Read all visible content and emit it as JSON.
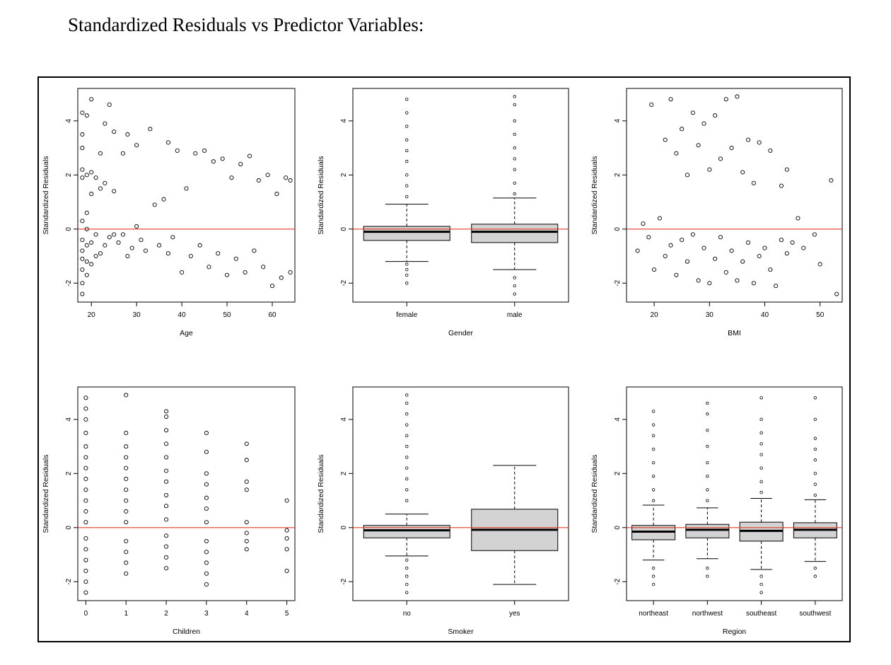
{
  "page": {
    "title": "Standardized Residuals vs Predictor Variables:"
  },
  "colors": {
    "reference_line": "#e0392b",
    "box_fill": "#d3d3d3",
    "ink": "#000000"
  },
  "chart_data": [
    {
      "id": "age",
      "type": "scatter",
      "xlabel": "Age",
      "ylabel": "Standardized Residuals",
      "xlim": [
        17,
        65
      ],
      "ylim": [
        -2.7,
        5.2
      ],
      "xticks": [
        20,
        30,
        40,
        50,
        60
      ],
      "yticks": [
        -2,
        0,
        2,
        4
      ],
      "reference_line_y": 0,
      "points": [
        [
          18,
          -2.4
        ],
        [
          18,
          -2.0
        ],
        [
          18,
          -1.5
        ],
        [
          18,
          -1.1
        ],
        [
          18,
          -0.8
        ],
        [
          18,
          -0.4
        ],
        [
          18,
          0.3
        ],
        [
          18,
          1.9
        ],
        [
          18,
          2.2
        ],
        [
          18,
          3.0
        ],
        [
          18,
          3.5
        ],
        [
          18,
          4.3
        ],
        [
          19,
          -1.7
        ],
        [
          19,
          -1.2
        ],
        [
          19,
          -0.6
        ],
        [
          19,
          0.0
        ],
        [
          19,
          0.6
        ],
        [
          19,
          2.0
        ],
        [
          19,
          4.2
        ],
        [
          20,
          -1.3
        ],
        [
          20,
          -0.5
        ],
        [
          20,
          1.3
        ],
        [
          20,
          2.1
        ],
        [
          20,
          4.8
        ],
        [
          21,
          -1.0
        ],
        [
          21,
          -0.2
        ],
        [
          21,
          1.9
        ],
        [
          22,
          -0.9
        ],
        [
          22,
          1.5
        ],
        [
          22,
          2.8
        ],
        [
          23,
          -0.6
        ],
        [
          23,
          1.7
        ],
        [
          23,
          3.9
        ],
        [
          24,
          -0.3
        ],
        [
          24,
          4.6
        ],
        [
          25,
          -0.2
        ],
        [
          25,
          1.4
        ],
        [
          25,
          3.6
        ],
        [
          26,
          -0.5
        ],
        [
          27,
          -0.2
        ],
        [
          27,
          2.8
        ],
        [
          28,
          -1.0
        ],
        [
          28,
          3.5
        ],
        [
          29,
          -0.7
        ],
        [
          30,
          0.1
        ],
        [
          30,
          3.1
        ],
        [
          31,
          -0.4
        ],
        [
          32,
          -0.8
        ],
        [
          33,
          3.7
        ],
        [
          34,
          0.9
        ],
        [
          35,
          -0.6
        ],
        [
          36,
          1.1
        ],
        [
          37,
          -0.9
        ],
        [
          37,
          3.2
        ],
        [
          38,
          -0.3
        ],
        [
          39,
          2.9
        ],
        [
          40,
          -1.6
        ],
        [
          41,
          1.5
        ],
        [
          42,
          -1.0
        ],
        [
          43,
          2.8
        ],
        [
          44,
          -0.6
        ],
        [
          45,
          2.9
        ],
        [
          46,
          -1.4
        ],
        [
          47,
          2.5
        ],
        [
          48,
          -0.9
        ],
        [
          49,
          2.6
        ],
        [
          50,
          -1.7
        ],
        [
          51,
          1.9
        ],
        [
          52,
          -1.1
        ],
        [
          53,
          2.4
        ],
        [
          54,
          -1.6
        ],
        [
          55,
          2.7
        ],
        [
          56,
          -0.8
        ],
        [
          57,
          1.8
        ],
        [
          58,
          -1.4
        ],
        [
          59,
          2.0
        ],
        [
          60,
          -2.1
        ],
        [
          61,
          1.3
        ],
        [
          62,
          -1.8
        ],
        [
          63,
          1.9
        ],
        [
          64,
          -1.6
        ],
        [
          64,
          1.8
        ]
      ]
    },
    {
      "id": "gender",
      "type": "box",
      "xlabel": "Gender",
      "ylabel": "Standardized Residuals",
      "ylim": [
        -2.7,
        5.2
      ],
      "yticks": [
        -2,
        0,
        2,
        4
      ],
      "reference_line_y": 0,
      "categories": [
        "female",
        "male"
      ],
      "boxes": [
        {
          "whisker_low": -1.2,
          "q1": -0.42,
          "median": -0.1,
          "q3": 0.1,
          "whisker_high": 0.92,
          "outliers": [
            -2.0,
            -1.7,
            -1.5,
            -1.3,
            1.2,
            1.6,
            2.0,
            2.5,
            2.9,
            3.3,
            3.8,
            4.3,
            4.8
          ]
        },
        {
          "whisker_low": -1.5,
          "q1": -0.5,
          "median": -0.1,
          "q3": 0.18,
          "whisker_high": 1.15,
          "outliers": [
            -2.4,
            -2.1,
            -1.8,
            1.3,
            1.7,
            2.2,
            2.6,
            3.0,
            3.5,
            4.0,
            4.6,
            4.9
          ]
        }
      ]
    },
    {
      "id": "bmi",
      "type": "scatter",
      "xlabel": "BMI",
      "ylabel": "Standardized Residuals",
      "xlim": [
        15,
        54
      ],
      "ylim": [
        -2.7,
        5.2
      ],
      "xticks": [
        20,
        30,
        40,
        50
      ],
      "yticks": [
        -2,
        0,
        2,
        4
      ],
      "reference_line_y": 0,
      "points": [
        [
          17,
          -0.8
        ],
        [
          18,
          0.2
        ],
        [
          19,
          -0.3
        ],
        [
          19.5,
          4.6
        ],
        [
          20,
          -1.5
        ],
        [
          21,
          0.4
        ],
        [
          22,
          -1.0
        ],
        [
          22,
          3.3
        ],
        [
          23,
          -0.6
        ],
        [
          23,
          4.8
        ],
        [
          24,
          -1.7
        ],
        [
          24,
          2.8
        ],
        [
          25,
          -0.4
        ],
        [
          25,
          3.7
        ],
        [
          26,
          -1.2
        ],
        [
          26,
          2.0
        ],
        [
          27,
          -0.2
        ],
        [
          27,
          4.3
        ],
        [
          28,
          -1.9
        ],
        [
          28,
          3.1
        ],
        [
          29,
          -0.7
        ],
        [
          29,
          3.9
        ],
        [
          30,
          -2.0
        ],
        [
          30,
          2.2
        ],
        [
          31,
          -1.1
        ],
        [
          31,
          4.2
        ],
        [
          32,
          -0.3
        ],
        [
          32,
          2.6
        ],
        [
          33,
          -1.6
        ],
        [
          33,
          4.8
        ],
        [
          34,
          -0.8
        ],
        [
          34,
          3.0
        ],
        [
          35,
          -1.9
        ],
        [
          35,
          4.9
        ],
        [
          36,
          -1.2
        ],
        [
          36,
          2.1
        ],
        [
          37,
          -0.5
        ],
        [
          37,
          3.3
        ],
        [
          38,
          -2.0
        ],
        [
          38,
          1.7
        ],
        [
          39,
          -1.0
        ],
        [
          39,
          3.2
        ],
        [
          40,
          -0.7
        ],
        [
          41,
          -1.5
        ],
        [
          41,
          2.9
        ],
        [
          42,
          -2.1
        ],
        [
          43,
          -0.4
        ],
        [
          43,
          1.6
        ],
        [
          44,
          -0.9
        ],
        [
          44,
          2.2
        ],
        [
          45,
          -0.5
        ],
        [
          46,
          0.4
        ],
        [
          47,
          -0.7
        ],
        [
          49,
          -0.2
        ],
        [
          50,
          -1.3
        ],
        [
          52,
          1.8
        ],
        [
          53,
          -2.4
        ]
      ]
    },
    {
      "id": "children",
      "type": "scatter",
      "xlabel": "Children",
      "ylabel": "Standardized Residuals",
      "xlim": [
        -0.2,
        5.2
      ],
      "ylim": [
        -2.7,
        5.2
      ],
      "xticks": [
        0,
        1,
        2,
        3,
        4,
        5
      ],
      "yticks": [
        -2,
        0,
        2,
        4
      ],
      "reference_line_y": 0,
      "points": [
        [
          0,
          -2.4
        ],
        [
          0,
          -2.0
        ],
        [
          0,
          -1.6
        ],
        [
          0,
          -1.2
        ],
        [
          0,
          -0.8
        ],
        [
          0,
          -0.4
        ],
        [
          0,
          0.2
        ],
        [
          0,
          0.6
        ],
        [
          0,
          1.0
        ],
        [
          0,
          1.4
        ],
        [
          0,
          1.8
        ],
        [
          0,
          2.2
        ],
        [
          0,
          2.6
        ],
        [
          0,
          3.0
        ],
        [
          0,
          3.5
        ],
        [
          0,
          4.0
        ],
        [
          0,
          4.4
        ],
        [
          0,
          4.8
        ],
        [
          1,
          -1.7
        ],
        [
          1,
          -1.3
        ],
        [
          1,
          -0.9
        ],
        [
          1,
          -0.5
        ],
        [
          1,
          0.2
        ],
        [
          1,
          0.6
        ],
        [
          1,
          1.0
        ],
        [
          1,
          1.4
        ],
        [
          1,
          1.8
        ],
        [
          1,
          2.2
        ],
        [
          1,
          2.6
        ],
        [
          1,
          3.0
        ],
        [
          1,
          3.5
        ],
        [
          1,
          4.9
        ],
        [
          2,
          -1.5
        ],
        [
          2,
          -1.1
        ],
        [
          2,
          -0.7
        ],
        [
          2,
          -0.3
        ],
        [
          2,
          0.3
        ],
        [
          2,
          0.8
        ],
        [
          2,
          1.2
        ],
        [
          2,
          1.7
        ],
        [
          2,
          2.1
        ],
        [
          2,
          2.6
        ],
        [
          2,
          3.1
        ],
        [
          2,
          3.6
        ],
        [
          2,
          4.1
        ],
        [
          2,
          4.3
        ],
        [
          3,
          -2.1
        ],
        [
          3,
          -1.7
        ],
        [
          3,
          -1.3
        ],
        [
          3,
          -0.9
        ],
        [
          3,
          -0.5
        ],
        [
          3,
          0.2
        ],
        [
          3,
          0.7
        ],
        [
          3,
          1.1
        ],
        [
          3,
          1.6
        ],
        [
          3,
          2.0
        ],
        [
          3,
          2.8
        ],
        [
          3,
          3.5
        ],
        [
          4,
          -0.8
        ],
        [
          4,
          -0.5
        ],
        [
          4,
          -0.2
        ],
        [
          4,
          0.2
        ],
        [
          4,
          1.4
        ],
        [
          4,
          1.7
        ],
        [
          4,
          2.5
        ],
        [
          4,
          3.1
        ],
        [
          5,
          -1.6
        ],
        [
          5,
          -0.8
        ],
        [
          5,
          -0.4
        ],
        [
          5,
          -0.1
        ],
        [
          5,
          1.0
        ]
      ]
    },
    {
      "id": "smoker",
      "type": "box",
      "xlabel": "Smoker",
      "ylabel": "Standardized Residuals",
      "ylim": [
        -2.7,
        5.2
      ],
      "yticks": [
        -2,
        0,
        2,
        4
      ],
      "reference_line_y": 0,
      "categories": [
        "no",
        "yes"
      ],
      "boxes": [
        {
          "whisker_low": -1.05,
          "q1": -0.38,
          "median": -0.1,
          "q3": 0.08,
          "whisker_high": 0.5,
          "outliers": [
            -2.4,
            -2.1,
            -1.8,
            -1.5,
            -1.2,
            1.0,
            1.4,
            1.8,
            2.2,
            2.6,
            3.0,
            3.4,
            3.8,
            4.2,
            4.6,
            4.9
          ]
        },
        {
          "whisker_low": -2.1,
          "q1": -0.85,
          "median": -0.08,
          "q3": 0.68,
          "whisker_high": 2.3,
          "outliers": []
        }
      ]
    },
    {
      "id": "region",
      "type": "box",
      "xlabel": "Region",
      "ylabel": "Standardized Residuals",
      "ylim": [
        -2.7,
        5.2
      ],
      "yticks": [
        -2,
        0,
        2,
        4
      ],
      "reference_line_y": 0,
      "categories": [
        "northeast",
        "northwest",
        "southeast",
        "southwest"
      ],
      "boxes": [
        {
          "whisker_low": -1.2,
          "q1": -0.45,
          "median": -0.15,
          "q3": 0.08,
          "whisker_high": 0.83,
          "outliers": [
            -2.1,
            -1.8,
            -1.5,
            1.0,
            1.4,
            1.9,
            2.4,
            2.9,
            3.4,
            3.8,
            4.3
          ]
        },
        {
          "whisker_low": -1.15,
          "q1": -0.38,
          "median": -0.08,
          "q3": 0.12,
          "whisker_high": 0.73,
          "outliers": [
            -1.8,
            -1.5,
            1.0,
            1.4,
            1.9,
            2.4,
            3.0,
            3.6,
            4.2,
            4.6
          ]
        },
        {
          "whisker_low": -1.55,
          "q1": -0.5,
          "median": -0.12,
          "q3": 0.2,
          "whisker_high": 1.08,
          "outliers": [
            -2.4,
            -2.1,
            -1.8,
            1.3,
            1.7,
            2.2,
            2.7,
            3.1,
            3.5,
            4.0,
            4.8
          ]
        },
        {
          "whisker_low": -1.25,
          "q1": -0.38,
          "median": -0.08,
          "q3": 0.18,
          "whisker_high": 1.03,
          "outliers": [
            -1.8,
            -1.5,
            1.2,
            1.6,
            2.0,
            2.5,
            2.9,
            3.3,
            4.0,
            4.8
          ]
        }
      ]
    }
  ]
}
